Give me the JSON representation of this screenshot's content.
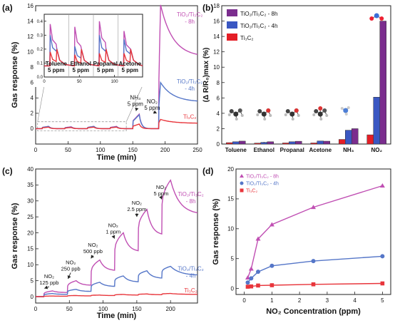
{
  "colors": {
    "ti3c2": "#e8353b",
    "tio2_4h": "#5576c8",
    "tio2_8h": "#c04fb3",
    "bar_8h": "#7b2d8e",
    "bar_4h": "#3a57c2",
    "bar_ti3c2": "#e41e26"
  },
  "chart_data": [
    {
      "panel": "(a)",
      "type": "line",
      "xlabel": "Time (min)",
      "ylabel": "Gas response (%)",
      "xlim": [
        0,
        250
      ],
      "ylim": [
        -2,
        16
      ],
      "xticks": [
        0,
        50,
        100,
        150,
        200,
        250
      ],
      "yticks": [
        0,
        2,
        4,
        6,
        8,
        10,
        12,
        14,
        16
      ],
      "gas_pulses": [
        {
          "start": 10,
          "stop": 20,
          "height": [
            0.3,
            0.3,
            0.2
          ]
        },
        {
          "start": 45,
          "stop": 55,
          "height": [
            0.25,
            0.2,
            0.15
          ]
        },
        {
          "start": 80,
          "stop": 90,
          "height": [
            0.3,
            0.3,
            0.2
          ]
        },
        {
          "start": 115,
          "stop": 125,
          "height": [
            0.3,
            0.25,
            0.2
          ]
        },
        {
          "start": 150,
          "stop": 160,
          "height": [
            1.9,
            1.8,
            0.6
          ]
        },
        {
          "start": 190,
          "stop": 250,
          "height": [
            16.1,
            6.0,
            1.2
          ],
          "rise": [
            6.5,
            3.0,
            0.8
          ],
          "recover": false
        }
      ],
      "series": [
        {
          "name": "TiO₂/Ti₃C₂ - 8h",
          "label": [
            "TiO₂/Ti₃C₂",
            "- 8h"
          ],
          "color": "#c04fb3",
          "label_at": [
            238,
            14.6
          ]
        },
        {
          "name": "TiO₂/Ti₃C₂ - 4h",
          "label": [
            "TiO₂/Ti₃C₂",
            "- 4h"
          ],
          "color": "#5576c8",
          "label_at": [
            238,
            5.9
          ]
        },
        {
          "name": "Ti₃C₂",
          "label": [
            "Ti₃C₂"
          ],
          "color": "#e8353b",
          "label_at": [
            238,
            1.3
          ]
        }
      ],
      "annotations": [
        {
          "lines": [
            "NH₃",
            "5 ppm"
          ],
          "at": [
            154,
            3.8
          ],
          "arrow_to": [
            155,
            2.3
          ]
        },
        {
          "lines": [
            "NO₂",
            "5 ppm"
          ],
          "at": [
            180,
            3.3
          ],
          "arrow_to": [
            187,
            2.0
          ]
        }
      ],
      "inset": {
        "xlim": [
          0,
          140
        ],
        "ylim": [
          0,
          0.45
        ],
        "xticks": [
          0,
          50,
          100
        ],
        "yticks": [
          0.0,
          0.1,
          0.2,
          0.3,
          0.4
        ],
        "dividers": [
          35,
          70,
          105
        ],
        "gases": [
          {
            "lines": [
              "Toluene",
              "5 ppm"
            ],
            "center": 17
          },
          {
            "lines": [
              "Ethanol",
              "5 ppm"
            ],
            "center": 52
          },
          {
            "lines": [
              "Propanal",
              "5 ppm"
            ],
            "center": 87
          },
          {
            "lines": [
              "Acetone",
              "5 ppm"
            ],
            "center": 122
          }
        ],
        "pulses": [
          {
            "start": 8,
            "peaks": [
              0.38,
              0.3,
              0.18
            ]
          },
          {
            "start": 43,
            "peaks": [
              0.36,
              0.22,
              0.16
            ]
          },
          {
            "start": 78,
            "peaks": [
              0.4,
              0.3,
              0.17
            ]
          },
          {
            "start": 113,
            "peaks": [
              0.33,
              0.27,
              0.17
            ]
          }
        ]
      }
    },
    {
      "panel": "(b)",
      "type": "bar",
      "ylabel": "(Δ R/R₀)max (%)",
      "ylim": [
        0,
        18
      ],
      "yticks": [
        0,
        2,
        4,
        6,
        8,
        10,
        12,
        14,
        16,
        18
      ],
      "categories": [
        "Toluene",
        "Ethanol",
        "Propanal",
        "Acetone",
        "NH₃",
        "NO₂"
      ],
      "legend_position": "top-left",
      "series": [
        {
          "name": "Ti₃C₂",
          "color": "#e41e26",
          "values": [
            0.18,
            0.12,
            0.14,
            0.14,
            0.6,
            1.2
          ]
        },
        {
          "name": "TiO₂/Ti₃C₂ - 4h",
          "color": "#3a57c2",
          "values": [
            0.3,
            0.22,
            0.3,
            0.4,
            1.8,
            6.1
          ]
        },
        {
          "name": "TiO₂/Ti₃C₂ - 8h",
          "color": "#7b2d8e",
          "values": [
            0.38,
            0.3,
            0.36,
            0.37,
            2.0,
            16.0
          ]
        }
      ],
      "legend": [
        {
          "name": "TiO₂/Ti₃C₂ - 8h",
          "color": "#7b2d8e"
        },
        {
          "name": "TiO₂/Ti₃C₂ - 4h",
          "color": "#3a57c2"
        },
        {
          "name": "Ti₃C₂",
          "color": "#e41e26"
        }
      ]
    },
    {
      "panel": "(c)",
      "type": "line",
      "xlabel": "Time (min)",
      "ylabel": "Gas response (%)",
      "xlim": [
        0,
        240
      ],
      "ylim": [
        -2,
        40
      ],
      "xticks": [
        0,
        50,
        100,
        150,
        200
      ],
      "yticks": [
        0,
        5,
        10,
        15,
        20,
        25,
        30,
        35,
        40
      ],
      "pulse_starts": [
        12,
        47,
        82,
        117,
        152,
        187
      ],
      "pulse_length": 13,
      "peaks": {
        "8h": [
          1.8,
          5.0,
          11.5,
          20.0,
          27.3,
          36.5
        ],
        "4h": [
          1.0,
          2.3,
          4.5,
          6.5,
          8.1,
          9.5
        ],
        "ti3c2": [
          0.2,
          0.35,
          0.5,
          0.7,
          0.85,
          1.0
        ]
      },
      "series": [
        {
          "name": "TiO₂/Ti₃C₂ - 8h",
          "label": [
            "TiO₂/Ti₃C₂",
            "- 8h"
          ],
          "color": "#c04fb3",
          "label_at": [
            230,
            31.5
          ]
        },
        {
          "name": "TiO₂/Ti₃C₂ - 4h",
          "label": [
            "TiO₂/Ti₃C₂",
            "- 4h"
          ],
          "color": "#5576c8",
          "label_at": [
            230,
            8.2
          ]
        },
        {
          "name": "Ti₃C₂",
          "label": [
            "Ti₃C₂"
          ],
          "color": "#e8353b",
          "label_at": [
            230,
            1.4
          ]
        }
      ],
      "annotations": [
        {
          "lines": [
            "NO₂",
            "125 ppb"
          ],
          "at": [
            20,
            5.8
          ],
          "arrow_to": [
            13,
            2.6
          ]
        },
        {
          "lines": [
            "NO₂",
            "250 ppb"
          ],
          "at": [
            52,
            10.2
          ],
          "arrow_to": [
            48,
            5.6
          ]
        },
        {
          "lines": [
            "NO₂",
            "500 ppb"
          ],
          "at": [
            85,
            15.6
          ],
          "arrow_to": [
            82,
            12.0
          ]
        },
        {
          "lines": [
            "NO₂",
            "1 ppm"
          ],
          "at": [
            115,
            21.8
          ],
          "arrow_to": [
            117,
            18.2
          ]
        },
        {
          "lines": [
            "NO₂",
            "2.5 ppm"
          ],
          "at": [
            150,
            28.8
          ],
          "arrow_to": [
            150,
            25.0
          ]
        },
        {
          "lines": [
            "NO₂",
            "5 ppm"
          ],
          "at": [
            186,
            33.8
          ],
          "arrow_to": [
            187,
            30.5
          ]
        }
      ]
    },
    {
      "panel": "(d)",
      "type": "scatter",
      "xlabel": "NO₂ Concentration (ppm)",
      "ylabel": "Gas response (%)",
      "xlim": [
        -0.3,
        5.3
      ],
      "ylim": [
        -1,
        20
      ],
      "xticks": [
        0,
        1,
        2,
        3,
        4,
        5
      ],
      "yticks": [
        0,
        5,
        10,
        15,
        20
      ],
      "x": [
        0.125,
        0.25,
        0.5,
        1,
        2.5,
        5
      ],
      "legend_position": "top-left",
      "series": [
        {
          "name": "TiO₂/Ti₃C₂ - 8h",
          "marker": "triangle",
          "color": "#c04fb3",
          "values": [
            1.8,
            3.3,
            8.3,
            10.7,
            13.6,
            17.2
          ]
        },
        {
          "name": "TiO₂/Ti₃C₂ - 4h",
          "marker": "circle",
          "color": "#5576c8",
          "values": [
            1.0,
            1.7,
            2.8,
            3.8,
            4.6,
            5.4
          ]
        },
        {
          "name": "Ti₃C₂",
          "marker": "square",
          "color": "#e8353b",
          "values": [
            0.3,
            0.35,
            0.5,
            0.55,
            0.7,
            0.85
          ]
        }
      ]
    }
  ]
}
